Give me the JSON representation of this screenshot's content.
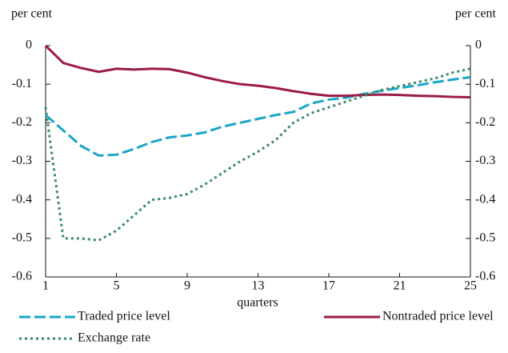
{
  "chart_data": {
    "type": "line",
    "y_label": "per cent",
    "y2_label": "per cent",
    "x_label": "quarters",
    "x": [
      1,
      2,
      3,
      4,
      5,
      6,
      7,
      8,
      9,
      10,
      11,
      12,
      13,
      14,
      15,
      16,
      17,
      18,
      19,
      20,
      21,
      22,
      23,
      24,
      25
    ],
    "xlim": [
      1,
      25
    ],
    "xticks": [
      1,
      5,
      9,
      13,
      17,
      21,
      25
    ],
    "ylim": [
      -0.6,
      0
    ],
    "yticks": [
      0,
      -0.1,
      -0.2,
      -0.3,
      -0.4,
      -0.5,
      -0.6
    ],
    "y2lim": [
      -0.6,
      0
    ],
    "y2ticks": [
      0,
      -0.1,
      -0.2,
      -0.3,
      -0.4,
      -0.5,
      -0.6
    ],
    "series": [
      {
        "name": "Traded price level",
        "color": "#1ba6c6",
        "dash": "dashed",
        "values": [
          -0.18,
          -0.22,
          -0.26,
          -0.285,
          -0.283,
          -0.268,
          -0.25,
          -0.238,
          -0.233,
          -0.225,
          -0.21,
          -0.2,
          -0.19,
          -0.18,
          -0.172,
          -0.15,
          -0.14,
          -0.135,
          -0.125,
          -0.117,
          -0.11,
          -0.103,
          -0.095,
          -0.088,
          -0.082
        ]
      },
      {
        "name": "Nontraded price level",
        "color": "#9b1b46",
        "dash": "solid",
        "values": [
          0,
          -0.045,
          -0.058,
          -0.068,
          -0.06,
          -0.062,
          -0.06,
          -0.061,
          -0.07,
          -0.082,
          -0.092,
          -0.1,
          -0.104,
          -0.11,
          -0.118,
          -0.125,
          -0.13,
          -0.13,
          -0.128,
          -0.127,
          -0.128,
          -0.13,
          -0.131,
          -0.133,
          -0.134
        ]
      },
      {
        "name": "Exchange rate",
        "color": "#3a8a6a",
        "dash": "dotted",
        "values": [
          -0.16,
          -0.5,
          -0.5,
          -0.505,
          -0.48,
          -0.44,
          -0.4,
          -0.395,
          -0.385,
          -0.36,
          -0.33,
          -0.3,
          -0.275,
          -0.245,
          -0.2,
          -0.175,
          -0.16,
          -0.145,
          -0.13,
          -0.115,
          -0.105,
          -0.095,
          -0.085,
          -0.07,
          -0.06
        ]
      }
    ]
  }
}
